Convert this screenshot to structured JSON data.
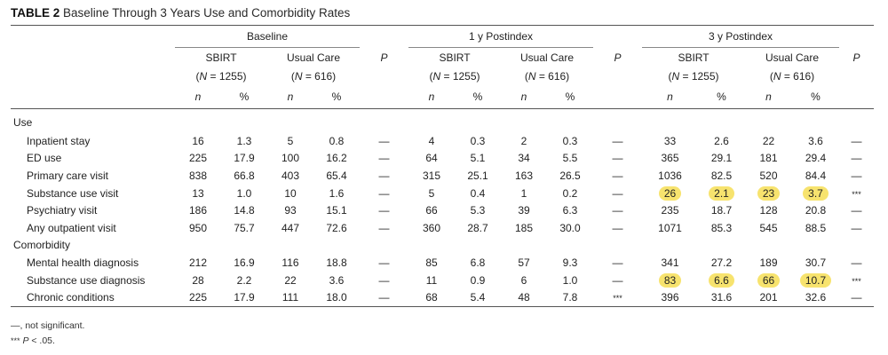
{
  "caption": {
    "label": "TABLE 2",
    "text": " Baseline Through 3 Years Use and Comorbidity Rates"
  },
  "periods": [
    "Baseline",
    "1 y Postindex",
    "3 y Postindex"
  ],
  "groups": [
    {
      "name": "SBIRT",
      "n_pre": "(",
      "n_label": "N",
      "n_post": " = 1255)"
    },
    {
      "name": "Usual Care",
      "n_pre": "(",
      "n_label": "N",
      "n_post": " = 616)"
    }
  ],
  "p_label": "P",
  "col_n": "n",
  "col_pct": "%",
  "sections": [
    {
      "title": "Use",
      "rows": [
        {
          "label": "Inpatient stay",
          "cells": [
            "16",
            "1.3",
            "5",
            "0.8",
            "—",
            "4",
            "0.3",
            "2",
            "0.3",
            "—",
            "33",
            "2.6",
            "22",
            "3.6",
            "—"
          ],
          "hl": []
        },
        {
          "label": "ED use",
          "cells": [
            "225",
            "17.9",
            "100",
            "16.2",
            "—",
            "64",
            "5.1",
            "34",
            "5.5",
            "—",
            "365",
            "29.1",
            "181",
            "29.4",
            "—"
          ],
          "hl": []
        },
        {
          "label": "Primary care visit",
          "cells": [
            "838",
            "66.8",
            "403",
            "65.4",
            "—",
            "315",
            "25.1",
            "163",
            "26.5",
            "—",
            "1036",
            "82.5",
            "520",
            "84.4",
            "—"
          ],
          "hl": []
        },
        {
          "label": "Substance use visit",
          "cells": [
            "13",
            "1.0",
            "10",
            "1.6",
            "—",
            "5",
            "0.4",
            "1",
            "0.2",
            "—",
            "26",
            "2.1",
            "23",
            "3.7",
            "***"
          ],
          "hl": [
            10,
            11,
            12,
            13,
            14
          ]
        },
        {
          "label": "Psychiatry visit",
          "cells": [
            "186",
            "14.8",
            "93",
            "15.1",
            "—",
            "66",
            "5.3",
            "39",
            "6.3",
            "—",
            "235",
            "18.7",
            "128",
            "20.8",
            "—"
          ],
          "hl": []
        },
        {
          "label": "Any outpatient visit",
          "cells": [
            "950",
            "75.7",
            "447",
            "72.6",
            "—",
            "360",
            "28.7",
            "185",
            "30.0",
            "—",
            "1071",
            "85.3",
            "545",
            "88.5",
            "—"
          ],
          "hl": []
        }
      ]
    },
    {
      "title": "Comorbidity",
      "rows": [
        {
          "label": "Mental health diagnosis",
          "cells": [
            "212",
            "16.9",
            "116",
            "18.8",
            "—",
            "85",
            "6.8",
            "57",
            "9.3",
            "—",
            "341",
            "27.2",
            "189",
            "30.7",
            "—"
          ],
          "hl": []
        },
        {
          "label": "Substance use diagnosis",
          "cells": [
            "28",
            "2.2",
            "22",
            "3.6",
            "—",
            "11",
            "0.9",
            "6",
            "1.0",
            "—",
            "83",
            "6.6",
            "66",
            "10.7",
            "***"
          ],
          "hl": [
            10,
            11,
            12,
            13,
            14
          ]
        },
        {
          "label": "Chronic conditions",
          "cells": [
            "225",
            "17.9",
            "111",
            "18.0",
            "—",
            "68",
            "5.4",
            "48",
            "7.8",
            "***",
            "396",
            "31.6",
            "201",
            "32.6",
            "—"
          ],
          "hl": []
        }
      ]
    }
  ],
  "notes": {
    "ns_text": "—, not significant.",
    "sig_mark": "***",
    "sig_p": "P",
    "sig_text": " < .05."
  }
}
